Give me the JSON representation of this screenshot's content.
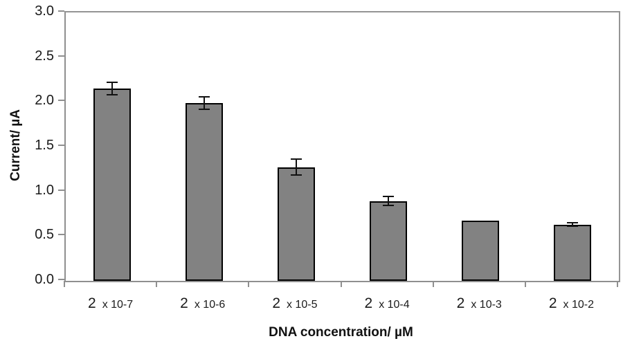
{
  "chart_data": {
    "type": "bar",
    "title": "",
    "xlabel": "DNA concentration/  µM",
    "ylabel": "Current/ µA",
    "categories": [
      {
        "label": "2  x 10-7",
        "main": "2",
        "exp": "x 10-7"
      },
      {
        "label": "2  x 10-6",
        "main": "2",
        "exp": "x 10-6"
      },
      {
        "label": "2  x 10-5",
        "main": "2",
        "exp": "x 10-5"
      },
      {
        "label": "2  x 10-4",
        "main": "2",
        "exp": "x 10-4"
      },
      {
        "label": "2  x 10-3",
        "main": "2",
        "exp": "x 10-3"
      },
      {
        "label": "2  x 10-2",
        "main": "2",
        "exp": "x 10-2"
      }
    ],
    "values": [
      2.15,
      1.99,
      1.27,
      0.89,
      0.67,
      0.63
    ],
    "errors": [
      0.07,
      0.07,
      0.09,
      0.05,
      0,
      0.02
    ],
    "ylim": [
      0,
      3.0
    ],
    "ytick_step": 0.5,
    "ytick_labels": [
      "0.0",
      "0.5",
      "1.0",
      "1.5",
      "2.0",
      "2.5",
      "3.0"
    ],
    "grid": false,
    "legend": false,
    "colors": {
      "bar_fill": "#828282",
      "bar_border": "#000000",
      "axis_line": "#8f8f8f",
      "error_bar": "#111111",
      "text": "#1a1a1a"
    }
  }
}
